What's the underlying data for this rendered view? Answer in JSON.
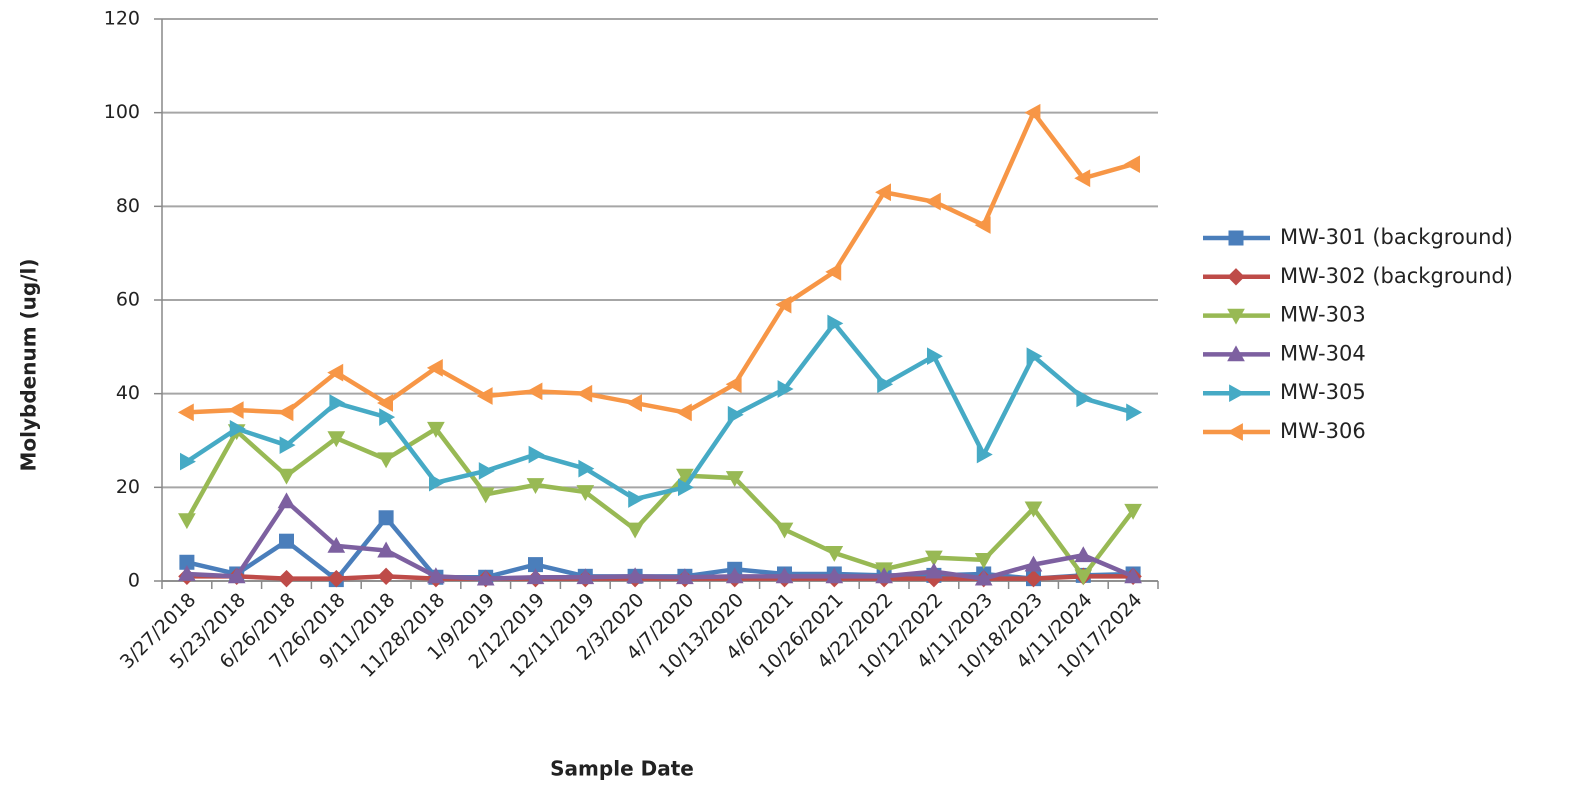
{
  "chart_data": {
    "type": "line",
    "y_label": "Molybdenum (ug/l)",
    "x_label": "Sample Date",
    "categories": [
      "3/27/2018",
      "5/23/2018",
      "6/26/2018",
      "7/26/2018",
      "9/11/2018",
      "11/28/2018",
      "1/9/2019",
      "2/12/2019",
      "12/11/2019",
      "2/3/2020",
      "4/7/2020",
      "10/13/2020",
      "4/6/2021",
      "10/26/2021",
      "4/22/2022",
      "10/12/2022",
      "4/11/2023",
      "10/18/2023",
      "4/11/2024",
      "10/17/2024"
    ],
    "ylim": [
      0,
      120
    ],
    "yticks": [
      0,
      20,
      40,
      60,
      80,
      100,
      120
    ],
    "grid": true,
    "legend": "right",
    "series": [
      {
        "name": "MW-301 (background)",
        "color": "#4a7ebb",
        "marker": "square",
        "values": [
          4,
          1.5,
          8.5,
          0.3,
          13.5,
          0.8,
          0.8,
          3.5,
          1,
          1,
          1,
          2.5,
          1.5,
          1.5,
          1.2,
          1.2,
          1.5,
          0.5,
          1.2,
          1.5
        ]
      },
      {
        "name": "MW-302 (background)",
        "color": "#be4b48",
        "marker": "diamond",
        "values": [
          1,
          1,
          0.5,
          0.5,
          1,
          0.5,
          0.5,
          0.5,
          0.5,
          0.5,
          0.5,
          0.5,
          0.5,
          0.5,
          0.5,
          0.5,
          0.5,
          0.5,
          1,
          1
        ]
      },
      {
        "name": "MW-303",
        "color": "#98b954",
        "marker": "triangle-down",
        "values": [
          13,
          32,
          22.5,
          30.5,
          26,
          32.5,
          18.5,
          20.5,
          19,
          11,
          22.5,
          22,
          11,
          6,
          2.5,
          5,
          4.5,
          15.5,
          1,
          15
        ]
      },
      {
        "name": "MW-304",
        "color": "#7d60a0",
        "marker": "triangle-up",
        "values": [
          1.5,
          1,
          17,
          7.5,
          6.5,
          1,
          0.5,
          0.8,
          0.8,
          1,
          0.8,
          1,
          1,
          1,
          1,
          2,
          0.5,
          3.5,
          5.5,
          1
        ]
      },
      {
        "name": "MW-305",
        "color": "#46aac5",
        "marker": "triangle-right",
        "values": [
          25.5,
          32.5,
          29,
          38,
          35,
          21,
          23.5,
          27,
          24,
          17.5,
          20,
          35.5,
          41,
          55,
          42,
          48,
          27,
          48,
          39,
          36
        ]
      },
      {
        "name": "MW-306",
        "color": "#f79646",
        "marker": "triangle-left",
        "values": [
          36,
          36.5,
          36,
          44.5,
          38,
          45.5,
          39.5,
          40.5,
          40,
          38,
          36,
          42,
          59,
          66,
          83,
          81,
          76,
          100,
          86,
          89
        ]
      }
    ]
  }
}
